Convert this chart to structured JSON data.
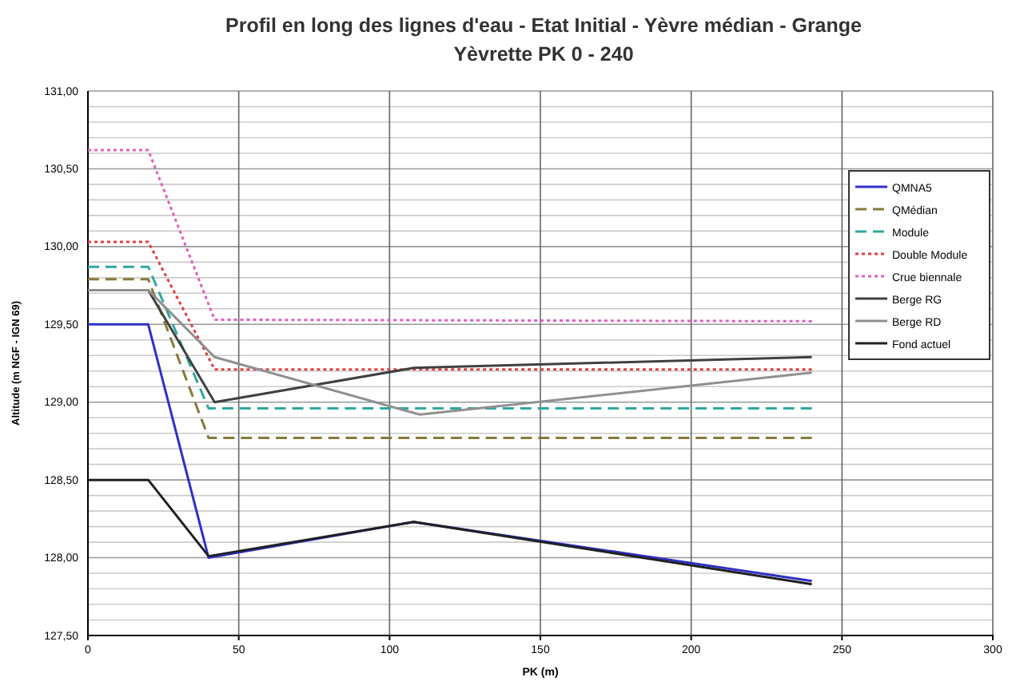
{
  "chart_data": {
    "type": "line",
    "title": "Profil en long des lignes d'eau - Etat Initial  - Yèvre médian - Grange",
    "subtitle": "Yèvrette PK 0 - 240",
    "xlabel": "PK (m)",
    "ylabel": "Altitude (m NGF - IGN 69)",
    "xlim": [
      0,
      300
    ],
    "xticks": [
      0,
      50,
      100,
      150,
      200,
      250,
      300
    ],
    "ylim": [
      127.5,
      131
    ],
    "yticks": [
      {
        "value": 127.5,
        "label": "127,50"
      },
      {
        "value": 127.6,
        "label": null
      },
      {
        "value": 127.7,
        "label": null
      },
      {
        "value": 127.8,
        "label": null
      },
      {
        "value": 127.9,
        "label": null
      },
      {
        "value": 128,
        "label": "128,00"
      },
      {
        "value": 128.1,
        "label": null
      },
      {
        "value": 128.2,
        "label": null
      },
      {
        "value": 128.3,
        "label": null
      },
      {
        "value": 128.4,
        "label": null
      },
      {
        "value": 128.5,
        "label": "128,50"
      },
      {
        "value": 128.6,
        "label": null
      },
      {
        "value": 128.7,
        "label": null
      },
      {
        "value": 128.8,
        "label": null
      },
      {
        "value": 128.9,
        "label": null
      },
      {
        "value": 129,
        "label": "129,00"
      },
      {
        "value": 129.1,
        "label": null
      },
      {
        "value": 129.2,
        "label": null
      },
      {
        "value": 129.3,
        "label": null
      },
      {
        "value": 129.4,
        "label": null
      },
      {
        "value": 129.5,
        "label": "129,50"
      },
      {
        "value": 129.6,
        "label": null
      },
      {
        "value": 129.7,
        "label": null
      },
      {
        "value": 129.8,
        "label": null
      },
      {
        "value": 129.9,
        "label": null
      },
      {
        "value": 130,
        "label": "130,00"
      },
      {
        "value": 130.1,
        "label": null
      },
      {
        "value": 130.2,
        "label": null
      },
      {
        "value": 130.3,
        "label": null
      },
      {
        "value": 130.4,
        "label": null
      },
      {
        "value": 130.5,
        "label": "130,50"
      },
      {
        "value": 130.6,
        "label": null
      },
      {
        "value": 130.7,
        "label": null
      },
      {
        "value": 130.8,
        "label": null
      },
      {
        "value": 130.9,
        "label": null
      },
      {
        "value": 131,
        "label": "131,00"
      }
    ],
    "grid": true,
    "legend": "right",
    "marker": "none",
    "series": [
      {
        "name": "QMNA5",
        "color": "#3030c8",
        "line_style": "solid",
        "x": [
          0,
          20,
          40,
          108,
          240
        ],
        "values": [
          129.5,
          129.5,
          128.0,
          128.23,
          127.85
        ]
      },
      {
        "name": "QMédian",
        "color": "#8a7a3a",
        "line_style": "dashed",
        "x": [
          0,
          20,
          40,
          240
        ],
        "values": [
          129.79,
          129.79,
          128.77,
          128.77
        ]
      },
      {
        "name": "Module",
        "color": "#30a8a0",
        "line_style": "dashed",
        "x": [
          0,
          20,
          40,
          240
        ],
        "values": [
          129.87,
          129.87,
          128.96,
          128.96
        ]
      },
      {
        "name": "Double Module",
        "color": "#e04040",
        "line_style": "dotted",
        "x": [
          0,
          20,
          42,
          240
        ],
        "values": [
          130.03,
          130.03,
          129.21,
          129.21
        ]
      },
      {
        "name": "Crue biennale",
        "color": "#e060c0",
        "line_style": "dotted",
        "x": [
          0,
          20,
          42,
          240
        ],
        "values": [
          130.62,
          130.62,
          129.53,
          129.52
        ]
      },
      {
        "name": "Berge RG",
        "color": "#404040",
        "line_style": "solid",
        "x": [
          0,
          20,
          42,
          108,
          240
        ],
        "values": [
          129.72,
          129.72,
          129.0,
          129.22,
          129.29
        ]
      },
      {
        "name": "Berge RD",
        "color": "#909090",
        "line_style": "solid",
        "x": [
          0,
          20,
          42,
          110,
          240
        ],
        "values": [
          129.72,
          129.72,
          129.29,
          128.92,
          129.19
        ]
      },
      {
        "name": "Fond actuel",
        "color": "#202020",
        "line_style": "solid",
        "x": [
          0,
          20,
          40,
          108,
          240
        ],
        "values": [
          128.5,
          128.5,
          128.01,
          128.23,
          127.83
        ]
      }
    ]
  }
}
